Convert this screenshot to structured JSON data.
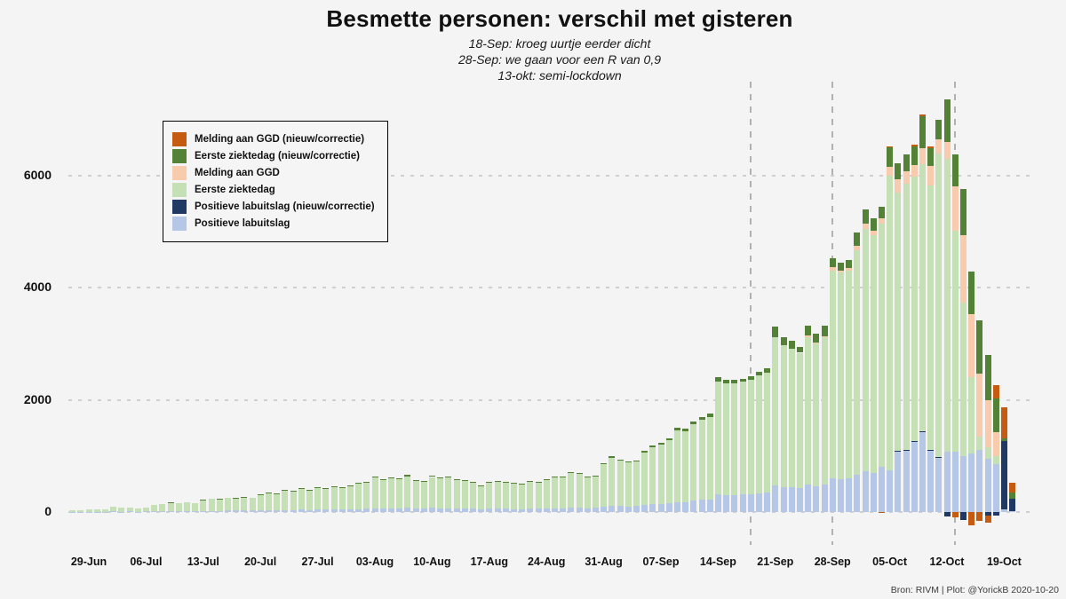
{
  "title": "Besmette personen: verschil met gisteren",
  "subtitles": [
    "18-Sep: kroeg uurtje eerder dicht",
    "28-Sep: we gaan voor een R van 0,9",
    "13-okt: semi-lockdown"
  ],
  "footer": "Bron: RIVM | Plot: @YorickB  2020-10-20",
  "colors": {
    "background": "#f4f4f4",
    "gridline": "#cfcfcf",
    "event_line": "#b1b1b1",
    "melding_corr": "#C55A11",
    "eerste_corr": "#538135",
    "melding": "#F8CBAD",
    "eerste": "#C5E0B4",
    "pos_lab_corr": "#1F3864",
    "pos_lab": "#B4C7E7"
  },
  "legend": {
    "items": [
      {
        "label": "Melding aan GGD (nieuw/correctie)",
        "color_key": "melding_corr"
      },
      {
        "label": "Eerste ziektedag (nieuw/correctie)",
        "color_key": "eerste_corr"
      },
      {
        "label": "Melding aan GGD",
        "color_key": "melding"
      },
      {
        "label": "Eerste ziektedag",
        "color_key": "eerste"
      },
      {
        "label": "Positieve labuitslag (nieuw/correctie)",
        "color_key": "pos_lab_corr"
      },
      {
        "label": "Positieve labuitslag",
        "color_key": "pos_lab"
      }
    ]
  },
  "chart_data": {
    "type": "bar",
    "stacked": true,
    "num_days": 116,
    "x_tick_labels": [
      "29-Jun",
      "06-Jul",
      "13-Jul",
      "20-Jul",
      "27-Jul",
      "03-Aug",
      "10-Aug",
      "17-Aug",
      "24-Aug",
      "31-Aug",
      "07-Sep",
      "14-Sep",
      "21-Sep",
      "28-Sep",
      "05-Oct",
      "12-Oct",
      "19-Oct"
    ],
    "x_tick_first_day_index": 2,
    "x_tick_step_days": 7,
    "y_ticks": [
      0,
      2000,
      4000,
      6000
    ],
    "ylim": [
      -450,
      7500
    ],
    "grid": "dashed-horizontal",
    "legend_position": "top-left-inset",
    "event_line_day_indices": [
      83,
      93,
      108
    ],
    "series": [
      {
        "name": "Positieve labuitslag",
        "color_key": "pos_lab",
        "values": [
          4,
          5,
          5,
          6,
          5,
          8,
          7,
          8,
          6,
          8,
          12,
          14,
          15,
          14,
          16,
          15,
          20,
          22,
          20,
          24,
          24,
          26,
          24,
          30,
          33,
          31,
          38,
          36,
          42,
          38,
          44,
          40,
          46,
          42,
          48,
          55,
          58,
          70,
          64,
          70,
          66,
          75,
          62,
          60,
          72,
          66,
          70,
          64,
          62,
          58,
          50,
          58,
          60,
          58,
          55,
          54,
          60,
          58,
          64,
          70,
          70,
          78,
          76,
          70,
          72,
          95,
          115,
          105,
          100,
          105,
          125,
          140,
          145,
          155,
          180,
          175,
          200,
          215,
          225,
          310,
          300,
          305,
          310,
          320,
          340,
          355,
          480,
          450,
          440,
          420,
          490,
          460,
          490,
          600,
          590,
          600,
          660,
          720,
          700,
          810,
          750,
          1080,
          1100,
          1250,
          1430,
          1100,
          970,
          1080,
          1070,
          1000,
          1050,
          1100,
          950,
          860,
          40,
          10
        ]
      },
      {
        "name": "Positieve labuitslag (nieuw/correctie)",
        "color_key": "pos_lab_corr",
        "values": [
          0,
          0,
          0,
          0,
          0,
          0,
          0,
          0,
          0,
          0,
          0,
          0,
          0,
          0,
          0,
          0,
          0,
          0,
          0,
          0,
          0,
          0,
          0,
          0,
          0,
          0,
          0,
          0,
          0,
          0,
          0,
          0,
          0,
          0,
          0,
          0,
          0,
          0,
          0,
          0,
          0,
          0,
          0,
          0,
          0,
          0,
          0,
          0,
          0,
          0,
          0,
          0,
          0,
          0,
          0,
          0,
          0,
          0,
          0,
          0,
          0,
          0,
          0,
          0,
          0,
          0,
          0,
          0,
          0,
          0,
          0,
          0,
          0,
          0,
          0,
          0,
          0,
          0,
          0,
          0,
          0,
          0,
          0,
          0,
          0,
          0,
          0,
          0,
          0,
          0,
          0,
          0,
          0,
          0,
          0,
          0,
          0,
          0,
          0,
          0,
          0,
          15,
          15,
          15,
          15,
          15,
          15,
          -80,
          0,
          -150,
          0,
          0,
          -60,
          -60,
          1220,
          230
        ]
      },
      {
        "name": "Eerste ziektedag",
        "color_key": "eerste",
        "values": [
          21,
          30,
          35,
          44,
          40,
          82,
          73,
          77,
          59,
          72,
          118,
          136,
          150,
          146,
          159,
          145,
          195,
          213,
          205,
          226,
          226,
          239,
          236,
          285,
          307,
          294,
          347,
          339,
          378,
          357,
          396,
          380,
          409,
          398,
          422,
          465,
          482,
          555,
          516,
          545,
          519,
          565,
          503,
          495,
          553,
          534,
          555,
          511,
          498,
          472,
          425,
          477,
          480,
          477,
          460,
          451,
          490,
          482,
          516,
          555,
          560,
          612,
          614,
          560,
          568,
          755,
          855,
          815,
          780,
          790,
          935,
          1010,
          1065,
          1125,
          1270,
          1265,
          1360,
          1425,
          1475,
          2020,
          1990,
          1985,
          2010,
          2040,
          2090,
          2135,
          2640,
          2530,
          2470,
          2420,
          2630,
          2540,
          2620,
          3700,
          3680,
          3700,
          4000,
          4330,
          4230,
          4340,
          5250,
          4600,
          4740,
          4720,
          4760,
          4700,
          5400,
          5210,
          3940,
          2730,
          1350,
          240,
          200,
          130,
          0,
          0
        ]
      },
      {
        "name": "Melding aan GGD",
        "color_key": "melding",
        "values": [
          0,
          0,
          0,
          0,
          0,
          0,
          0,
          0,
          0,
          0,
          0,
          0,
          0,
          0,
          0,
          0,
          0,
          0,
          0,
          0,
          0,
          0,
          0,
          0,
          0,
          0,
          0,
          0,
          0,
          0,
          0,
          0,
          0,
          0,
          0,
          0,
          0,
          0,
          0,
          0,
          0,
          0,
          0,
          0,
          0,
          0,
          0,
          0,
          0,
          0,
          0,
          0,
          0,
          0,
          0,
          0,
          0,
          0,
          0,
          0,
          0,
          0,
          0,
          0,
          0,
          0,
          0,
          0,
          0,
          0,
          0,
          0,
          0,
          0,
          0,
          0,
          0,
          0,
          0,
          0,
          0,
          0,
          0,
          0,
          0,
          0,
          0,
          0,
          0,
          0,
          30,
          20,
          30,
          60,
          40,
          50,
          80,
          100,
          80,
          90,
          160,
          240,
          215,
          200,
          280,
          355,
          255,
          310,
          790,
          1210,
          1130,
          1130,
          850,
          440,
          0,
          0
        ]
      },
      {
        "name": "Eerste ziektedag (nieuw/correctie)",
        "color_key": "eerste_corr",
        "values": [
          0,
          0,
          0,
          0,
          0,
          0,
          0,
          0,
          0,
          0,
          0,
          0,
          5,
          0,
          0,
          0,
          5,
          0,
          5,
          0,
          5,
          5,
          0,
          5,
          5,
          5,
          5,
          5,
          10,
          5,
          10,
          5,
          10,
          5,
          10,
          10,
          5,
          15,
          10,
          10,
          20,
          20,
          10,
          5,
          25,
          10,
          15,
          10,
          10,
          15,
          5,
          10,
          10,
          10,
          10,
          5,
          10,
          5,
          10,
          15,
          10,
          15,
          10,
          10,
          10,
          20,
          30,
          20,
          25,
          20,
          30,
          40,
          30,
          40,
          50,
          40,
          60,
          60,
          50,
          70,
          60,
          70,
          60,
          60,
          70,
          80,
          180,
          140,
          150,
          110,
          180,
          160,
          190,
          160,
          140,
          150,
          240,
          250,
          220,
          210,
          340,
          285,
          300,
          335,
          565,
          310,
          360,
          760,
          580,
          820,
          760,
          950,
          800,
          600,
          60,
          110
        ]
      },
      {
        "name": "Melding aan GGD (nieuw/correctie)",
        "color_key": "melding_corr",
        "values": [
          0,
          0,
          0,
          0,
          0,
          0,
          0,
          0,
          0,
          0,
          0,
          0,
          0,
          0,
          0,
          0,
          0,
          0,
          0,
          0,
          0,
          0,
          0,
          0,
          0,
          0,
          0,
          0,
          0,
          0,
          0,
          0,
          0,
          0,
          0,
          0,
          0,
          0,
          0,
          0,
          0,
          0,
          0,
          0,
          0,
          0,
          0,
          0,
          0,
          0,
          0,
          0,
          0,
          0,
          0,
          0,
          0,
          0,
          0,
          0,
          0,
          0,
          0,
          0,
          0,
          0,
          0,
          0,
          0,
          0,
          0,
          0,
          0,
          0,
          0,
          0,
          0,
          0,
          0,
          0,
          0,
          0,
          0,
          0,
          0,
          0,
          0,
          0,
          0,
          0,
          0,
          0,
          0,
          0,
          0,
          0,
          0,
          0,
          0,
          -20,
          20,
          0,
          0,
          30,
          40,
          40,
          0,
          0,
          -100,
          0,
          -240,
          -160,
          -130,
          240,
          540,
          170
        ]
      }
    ]
  }
}
